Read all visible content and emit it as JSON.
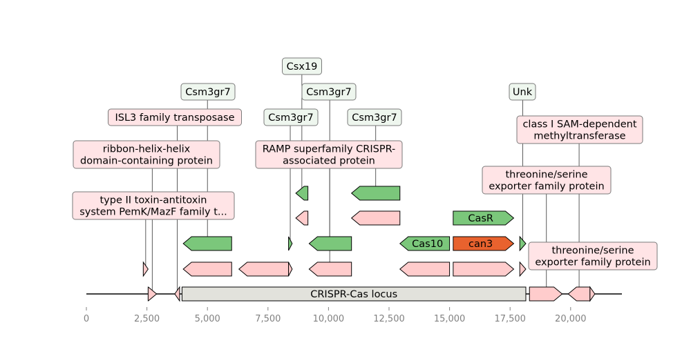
{
  "diagram": {
    "locus": {
      "label": "CRISPR-Cas locus",
      "start": 3950,
      "end": 18150,
      "color": "#e2e2dc"
    },
    "axis": {
      "min": 0,
      "max": 22000,
      "ticks": [
        0,
        2500,
        5000,
        7500,
        10000,
        12500,
        15000,
        17500,
        20000
      ],
      "tick_labels": [
        "0",
        "2,500",
        "5,000",
        "7,500",
        "10,000",
        "12,500",
        "15,000",
        "17,500",
        "20,000"
      ]
    },
    "colors": {
      "pink": "#ffcccc",
      "green": "#7bc77b",
      "orange": "#e8622e",
      "label_pink": "#ffe4e6",
      "label_green": "#eef6ee"
    },
    "genes": [
      {
        "row": 0,
        "start": 2550,
        "end": 2900,
        "strand": 1,
        "color": "pink"
      },
      {
        "row": 0,
        "start": 3650,
        "end": 3850,
        "strand": -1,
        "color": "pink"
      },
      {
        "row": 0,
        "start": 18300,
        "end": 19650,
        "strand": 1,
        "color": "pink"
      },
      {
        "row": 0,
        "start": 19900,
        "end": 20800,
        "strand": -1,
        "color": "pink"
      },
      {
        "row": 0,
        "start": 20800,
        "end": 21000,
        "strand": 1,
        "color": "pink"
      },
      {
        "row": 1,
        "start": 2350,
        "end": 2550,
        "strand": 1,
        "color": "pink"
      },
      {
        "row": 1,
        "start": 4000,
        "end": 6000,
        "strand": -1,
        "color": "pink"
      },
      {
        "row": 1,
        "start": 6300,
        "end": 8350,
        "strand": -1,
        "color": "pink"
      },
      {
        "row": 1,
        "start": 8350,
        "end": 8500,
        "strand": 1,
        "color": "pink"
      },
      {
        "row": 1,
        "start": 9200,
        "end": 10950,
        "strand": -1,
        "color": "pink"
      },
      {
        "row": 1,
        "start": 12950,
        "end": 15000,
        "strand": -1,
        "color": "pink"
      },
      {
        "row": 1,
        "start": 15150,
        "end": 17650,
        "strand": 1,
        "color": "pink"
      },
      {
        "row": 1,
        "start": 17900,
        "end": 18150,
        "strand": 1,
        "color": "pink"
      },
      {
        "row": 2,
        "start": 4000,
        "end": 6000,
        "strand": -1,
        "color": "green"
      },
      {
        "row": 2,
        "start": 8350,
        "end": 8500,
        "strand": 1,
        "color": "green"
      },
      {
        "row": 2,
        "start": 9200,
        "end": 10950,
        "strand": -1,
        "color": "green"
      },
      {
        "row": 2,
        "start": 12950,
        "end": 15000,
        "strand": -1,
        "color": "green",
        "label": "Cas10"
      },
      {
        "row": 2,
        "start": 15150,
        "end": 17650,
        "strand": 1,
        "color": "orange",
        "label": "can3"
      },
      {
        "row": 2,
        "start": 17900,
        "end": 18150,
        "strand": 1,
        "color": "green"
      },
      {
        "row": 3,
        "start": 8650,
        "end": 9150,
        "strand": -1,
        "color": "pink"
      },
      {
        "row": 3,
        "start": 10950,
        "end": 12950,
        "strand": -1,
        "color": "pink"
      },
      {
        "row": 3,
        "start": 15150,
        "end": 17650,
        "strand": 1,
        "color": "green",
        "label": "CasR"
      },
      {
        "row": 4,
        "start": 8650,
        "end": 9150,
        "strand": -1,
        "color": "green"
      },
      {
        "row": 4,
        "start": 10950,
        "end": 12950,
        "strand": -1,
        "color": "green"
      }
    ],
    "annotations": [
      {
        "text": [
          "type II toxin-antitoxin",
          "system PemK/MazF family t..."
        ],
        "tag": "pink",
        "gene_x": 2450,
        "anchor_row": 1,
        "box": "a1"
      },
      {
        "text": [
          "ribbon-helix-helix",
          "domain-containing protein"
        ],
        "tag": "pink",
        "gene_x": 2720,
        "anchor_row": 0,
        "box": "a2"
      },
      {
        "text": [
          "ISL3 family transposase"
        ],
        "tag": "pink",
        "gene_x": 3750,
        "anchor_row": 0,
        "box": "a3"
      },
      {
        "text": [
          "Csm3gr7"
        ],
        "tag": "green",
        "gene_x": 5000,
        "anchor_row": 2,
        "box": "a4"
      },
      {
        "text": [
          "Csm3gr7"
        ],
        "tag": "green",
        "gene_x": 8420,
        "anchor_row": 2,
        "box": "a5"
      },
      {
        "text": [
          "Csx19"
        ],
        "tag": "green",
        "gene_x": 8900,
        "anchor_row": 4,
        "box": "a6"
      },
      {
        "text": [
          "RAMP superfamily CRISPR-",
          "associated protein"
        ],
        "tag": "pink",
        "gene_x": 10050,
        "anchor_row": 1,
        "box": "a7"
      },
      {
        "text": [
          "Csm3gr7"
        ],
        "tag": "green",
        "gene_x": 10050,
        "anchor_row": 2,
        "box": "a8"
      },
      {
        "text": [
          "Csm3gr7"
        ],
        "tag": "green",
        "gene_x": 11950,
        "anchor_row": 4,
        "box": "a9"
      },
      {
        "text": [
          "Unk"
        ],
        "tag": "green",
        "gene_x": 18025,
        "anchor_row": 2,
        "box": "a10"
      },
      {
        "text": [
          "class I SAM-dependent",
          "methyltransferase"
        ],
        "tag": "pink",
        "gene_x": 20350,
        "anchor_row": 0,
        "box": "a11"
      },
      {
        "text": [
          "threonine/serine",
          "exporter family protein"
        ],
        "tag": "pink",
        "gene_x": 19000,
        "anchor_row": 0,
        "box": "a12"
      },
      {
        "text": [
          "threonine/serine",
          "exporter family protein"
        ],
        "tag": "pink",
        "gene_x": 18025,
        "anchor_row": 1,
        "box": "a13"
      }
    ]
  }
}
